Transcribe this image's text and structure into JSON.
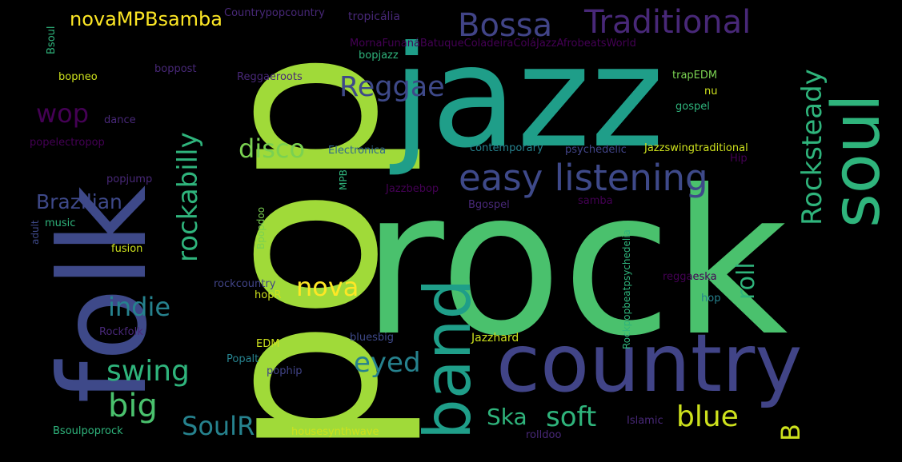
{
  "words": {
    "rock": "rock",
    "pop": "pop",
    "jazz": "jazz",
    "folk": "folk",
    "country": "country",
    "band": "band",
    "soul": "soul",
    "easy_listening": "easy listening",
    "bossa": "Bossa",
    "traditional": "Traditional",
    "reggae": "Reggae",
    "rocksteady": "Rocksteady",
    "rockabilly": "rockabilly",
    "disco": "disco",
    "wop": "wop",
    "brazilian": "Brazilian",
    "nova": "nova",
    "indie": "indie",
    "roll": "roll",
    "swing": "swing",
    "eyed": "eyed",
    "big": "big",
    "blue": "blue",
    "soft": "soft",
    "ska": "Ska",
    "soulr": "SoulR",
    "b": "B",
    "novampbsamba": "novaMPBsamba",
    "countrypopcountry": "Countrypopcountry",
    "tropicalia": "tropicália",
    "morna": "MornaFunanáBatuqueColadeiraColáJazzAfrobeatsWorld",
    "bopjazz": "bopjazz",
    "bsoul": "Bsoul",
    "bopneo": "bopneo",
    "boppost": "boppost",
    "reggaeroots": "Reggaeroots",
    "trapedm": "trapEDM",
    "nu": "nu",
    "gospel": "gospel",
    "dance": "dance",
    "popelectropop": "popelectropop",
    "electronica": "Electronica",
    "contemporary": "contemporary",
    "psychedelic": "psychedelic",
    "jazzswingtraditional": "Jazzswingtraditional",
    "hip": "Hip",
    "popjump": "popjump",
    "mpb": "MPB",
    "jazzbebop": "Jazzbebop",
    "bgospel": "Bgospel",
    "samba": "samba",
    "adult": "adult",
    "music": "music",
    "rockpop": "Rockpopbeatpsychedelia",
    "bpopdoo": "Bpopdoo",
    "fusion": "fusion",
    "rockcountry": "rockcountry",
    "reggaeska": "reggaeska",
    "hopr": "hopR",
    "hop": "hop",
    "rockfolk": "Rockfolk",
    "edm": "EDM",
    "bluesbig": "bluesbig",
    "jazzhard": "Jazzhard",
    "popalt": "Popalt",
    "pophip": "pophip",
    "islamic": "Islamic",
    "bsoulpoprock": "Bsoulpoprock",
    "housesynthwave": "housesynthwave",
    "rolldoo": "rolldoo"
  }
}
